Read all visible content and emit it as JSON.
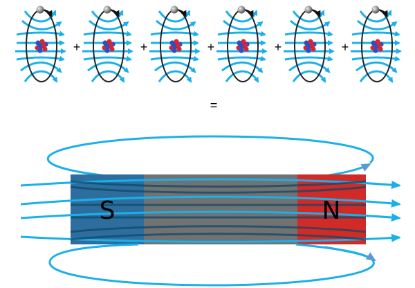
{
  "atoms": {
    "count": 6,
    "operator": "+",
    "equals": "="
  },
  "magnet": {
    "south_label": "S",
    "north_label": "N"
  },
  "colors": {
    "field_line": "#1ab0ea",
    "south_pole": "#2e6e9e",
    "north_pole": "#d12a27",
    "magnet_body": "#727272",
    "orbit": "#222222",
    "proton": "#d9262e",
    "neutron": "#2d4fc4",
    "electron": "#9a9a9a"
  }
}
